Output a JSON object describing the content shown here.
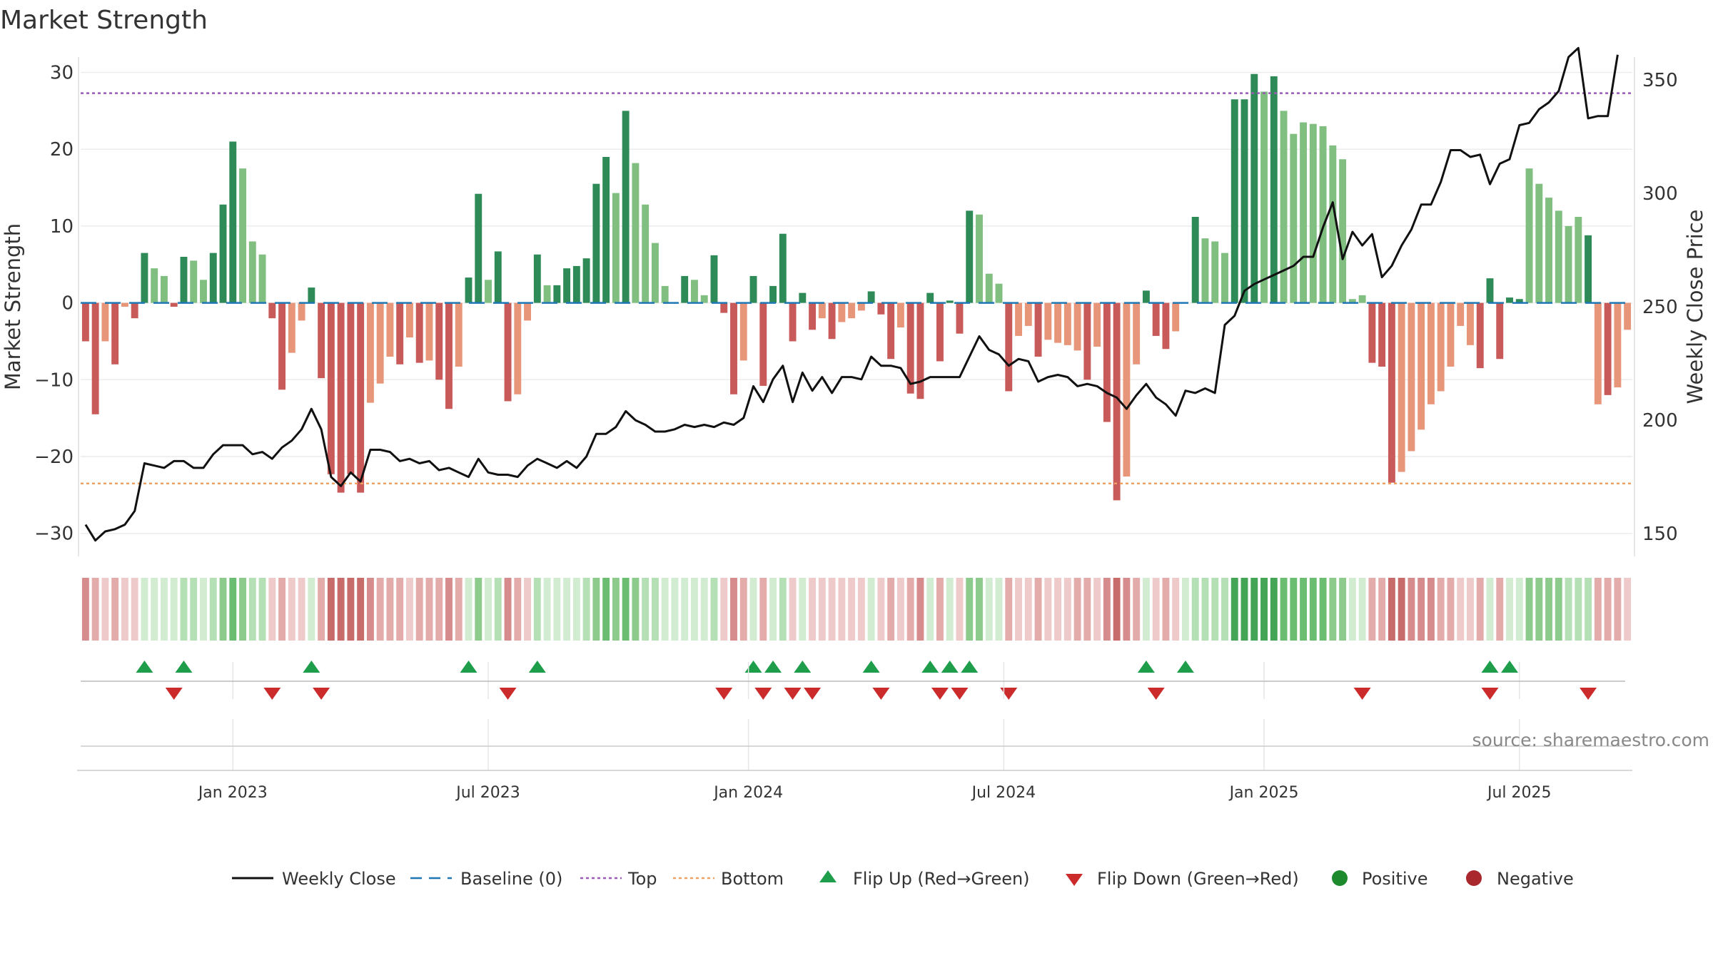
{
  "chart_data": {
    "type": "bar",
    "title": "Market Strength",
    "ylabel_left": "Market Strength",
    "ylabel_right": "Weekly Close Price",
    "ylim_left": [
      -33,
      32
    ],
    "ylim_right": [
      140,
      360
    ],
    "yticks_left": [
      "30",
      "20",
      "10",
      "0",
      "−10",
      "−20",
      "−30"
    ],
    "ytick_values_left": [
      30,
      20,
      10,
      0,
      -10,
      -20,
      -30
    ],
    "yticks_right": [
      "350",
      "300",
      "250",
      "200",
      "150"
    ],
    "ytick_values_right": [
      350,
      300,
      250,
      200,
      150
    ],
    "reference_lines": {
      "top": 27.3,
      "bottom": -23.5,
      "baseline": 0
    },
    "x_ticks": [
      "Jan 2023",
      "Jul 2023",
      "Jan 2024",
      "Jul 2024",
      "Jan 2025",
      "Jul 2025"
    ],
    "x_tick_index": [
      15,
      41,
      67.5,
      93.5,
      120,
      146
    ],
    "colors": {
      "strong_green": "#2e8b57",
      "light_green": "#80bf80",
      "strong_red": "#c85a5a",
      "light_red": "#e8967a",
      "top_line": "#9b59b6",
      "bottom_line": "#f0a060",
      "baseline": "#1f77b4",
      "close_line": "#111111",
      "flip_up": "#1e9e4a",
      "flip_down": "#cc2b2b",
      "positive": "#1e8a2e",
      "negative": "#a8282e"
    },
    "strength": [
      -5,
      -14.5,
      -5,
      -8,
      -0.5,
      -2,
      6.5,
      4.5,
      3.5,
      -0.5,
      6,
      5.5,
      3,
      6.5,
      12.8,
      21,
      17.5,
      8,
      6.3,
      -2,
      -11.3,
      -6.5,
      -2.3,
      2,
      -9.8,
      -22.3,
      -24.7,
      -22.3,
      -24.7,
      -13,
      -10.5,
      -7,
      -8,
      -4.5,
      -7.8,
      -7.5,
      -10,
      -13.8,
      -8.3,
      3.3,
      14.2,
      3,
      6.7,
      -12.8,
      -11.9,
      -2.3,
      6.3,
      2.3,
      2.3,
      4.5,
      4.8,
      5.8,
      15.5,
      19,
      14.3,
      25,
      18.2,
      12.8,
      7.8,
      2.2,
      0,
      3.5,
      3,
      1,
      6.2,
      -1.3,
      -11.9,
      -7.5,
      3.5,
      -10.8,
      2.2,
      9,
      -5,
      1.3,
      -3.5,
      -2,
      -4.7,
      -2.5,
      -2,
      -1,
      1.5,
      -1.5,
      -7.3,
      -3.2,
      -11.8,
      -12.5,
      1.3,
      -7.6,
      0.3,
      -4,
      12,
      11.5,
      3.8,
      2.5,
      -11.5,
      -4.3,
      -3,
      -7,
      -4.8,
      -5.2,
      -5.5,
      -6.2,
      -10,
      -5.7,
      -15.5,
      -25.7,
      -22.6,
      -8,
      1.6,
      -4.3,
      -6,
      -3.7,
      0,
      11.2,
      8.4,
      8,
      6.5,
      26.5,
      26.5,
      29.8,
      27.5,
      29.5,
      25,
      22,
      23.5,
      23.3,
      23,
      20.5,
      18.7,
      0.5,
      1,
      -7.8,
      -8.3,
      -23.4,
      -22,
      -19.3,
      -16.5,
      -13.2,
      -11.5,
      -8.3,
      -3,
      -5.5,
      -8.5,
      3.2,
      -7.3,
      0.7,
      0.5,
      17.5,
      15.5,
      13.7,
      12,
      10,
      11.2,
      8.8,
      -13.2,
      -12,
      -11,
      -3.5
    ],
    "shade": [
      1,
      1,
      0,
      1,
      0,
      1,
      1,
      0,
      0,
      1,
      1,
      0,
      0,
      1,
      1,
      1,
      0,
      0,
      0,
      1,
      1,
      0,
      0,
      1,
      1,
      1,
      1,
      1,
      1,
      0,
      0,
      0,
      1,
      0,
      1,
      0,
      1,
      1,
      0,
      1,
      1,
      0,
      1,
      1,
      0,
      0,
      1,
      0,
      1,
      1,
      1,
      1,
      1,
      1,
      0,
      1,
      0,
      0,
      0,
      0,
      0,
      1,
      0,
      0,
      1,
      1,
      1,
      0,
      1,
      1,
      1,
      1,
      1,
      1,
      1,
      0,
      1,
      0,
      0,
      0,
      1,
      1,
      1,
      0,
      1,
      1,
      1,
      1,
      1,
      1,
      1,
      0,
      0,
      0,
      1,
      0,
      0,
      1,
      0,
      0,
      0,
      0,
      1,
      0,
      1,
      1,
      0,
      0,
      1,
      1,
      1,
      0,
      0,
      1,
      0,
      0,
      0,
      1,
      1,
      1,
      0,
      1,
      0,
      0,
      0,
      0,
      0,
      0,
      0,
      0,
      0,
      1,
      1,
      1,
      0,
      0,
      0,
      0,
      0,
      0,
      0,
      0,
      1,
      1,
      1,
      1,
      1,
      0,
      0,
      0,
      0,
      0,
      0,
      1,
      0,
      1,
      0,
      0,
      0
    ],
    "weekly_close": [
      154,
      147,
      151,
      152,
      154,
      160,
      181,
      180,
      179,
      182,
      182,
      179,
      179,
      185,
      189,
      189,
      189,
      185,
      186,
      183,
      188,
      191,
      196,
      205,
      196,
      175,
      171,
      177,
      173,
      187,
      187,
      186,
      182,
      183,
      181,
      182,
      178,
      179,
      177,
      175,
      183,
      177,
      176,
      176,
      175,
      180,
      183,
      181,
      179,
      182,
      179,
      184,
      194,
      194,
      197,
      204,
      200,
      198,
      195,
      195,
      196,
      198,
      197,
      198,
      197,
      199,
      198,
      201,
      215,
      208,
      218,
      224,
      208,
      221,
      213,
      219,
      212,
      219,
      219,
      218,
      228,
      224,
      224,
      223,
      216,
      217,
      219,
      219,
      219,
      219,
      228,
      237,
      231,
      229,
      224,
      227,
      226,
      217,
      219,
      220,
      219,
      215,
      216,
      215,
      212,
      210,
      205,
      211,
      216,
      210,
      207,
      202,
      213,
      212,
      214,
      212,
      242,
      246,
      257,
      260,
      262,
      264,
      266,
      268,
      272,
      272,
      285,
      296,
      271,
      283,
      277,
      282,
      263,
      268,
      277,
      284,
      295,
      295,
      305,
      319,
      319,
      316,
      317,
      304,
      313,
      315,
      330,
      331,
      337,
      340,
      345,
      360,
      364,
      333,
      334,
      334,
      361
    ],
    "heat": [
      -3,
      -2,
      -1,
      -2,
      -1,
      -1,
      1,
      1,
      1,
      1,
      2,
      2,
      1,
      2,
      3,
      4,
      3,
      2,
      2,
      -1,
      -2,
      -1,
      -1,
      1,
      -2,
      -4,
      -4,
      -4,
      -4,
      -3,
      -2,
      -2,
      -2,
      -1,
      -2,
      -2,
      -2,
      -3,
      -2,
      1,
      3,
      1,
      2,
      -3,
      -2,
      -1,
      2,
      1,
      1,
      1,
      1,
      2,
      3,
      4,
      3,
      4,
      3,
      2,
      2,
      1,
      1,
      1,
      1,
      1,
      2,
      -1,
      -3,
      -2,
      1,
      -2,
      1,
      2,
      -1,
      1,
      -1,
      -1,
      -1,
      -1,
      -1,
      -1,
      1,
      -1,
      -2,
      -1,
      -2,
      -3,
      1,
      -2,
      1,
      -1,
      3,
      3,
      1,
      1,
      -2,
      -1,
      -1,
      -2,
      -1,
      -1,
      -1,
      -2,
      -2,
      -1,
      -3,
      -4,
      -3,
      -2,
      1,
      -1,
      -2,
      -1,
      1,
      2,
      2,
      2,
      2,
      5,
      5,
      5,
      5,
      5,
      4,
      4,
      4,
      4,
      4,
      3,
      3,
      1,
      1,
      -2,
      -2,
      -4,
      -4,
      -3,
      -3,
      -3,
      -2,
      -2,
      -1,
      -1,
      -2,
      1,
      -2,
      1,
      1,
      3,
      3,
      3,
      3,
      2,
      2,
      2,
      -2,
      -2,
      -2,
      -1
    ],
    "flip_up": [
      6,
      10,
      23,
      39,
      46,
      68,
      70,
      73,
      80,
      86,
      88,
      90,
      108,
      112,
      143,
      145
    ],
    "flip_down": [
      9,
      19,
      24,
      43,
      65,
      69,
      72,
      74,
      81,
      87,
      89,
      94,
      109,
      130,
      143,
      153
    ],
    "legend": [
      {
        "label": "Weekly Close",
        "kind": "line"
      },
      {
        "label": "Baseline (0)",
        "kind": "dash"
      },
      {
        "label": "Top",
        "kind": "dot"
      },
      {
        "label": "Bottom",
        "kind": "dot-orange"
      },
      {
        "label": "Flip Up (Red→Green)",
        "kind": "tri-up"
      },
      {
        "label": "Flip Down (Green→Red)",
        "kind": "tri-down"
      },
      {
        "label": "Positive",
        "kind": "circle-pos"
      },
      {
        "label": "Negative",
        "kind": "circle-neg"
      }
    ],
    "source": "source: sharemaestro.com"
  }
}
